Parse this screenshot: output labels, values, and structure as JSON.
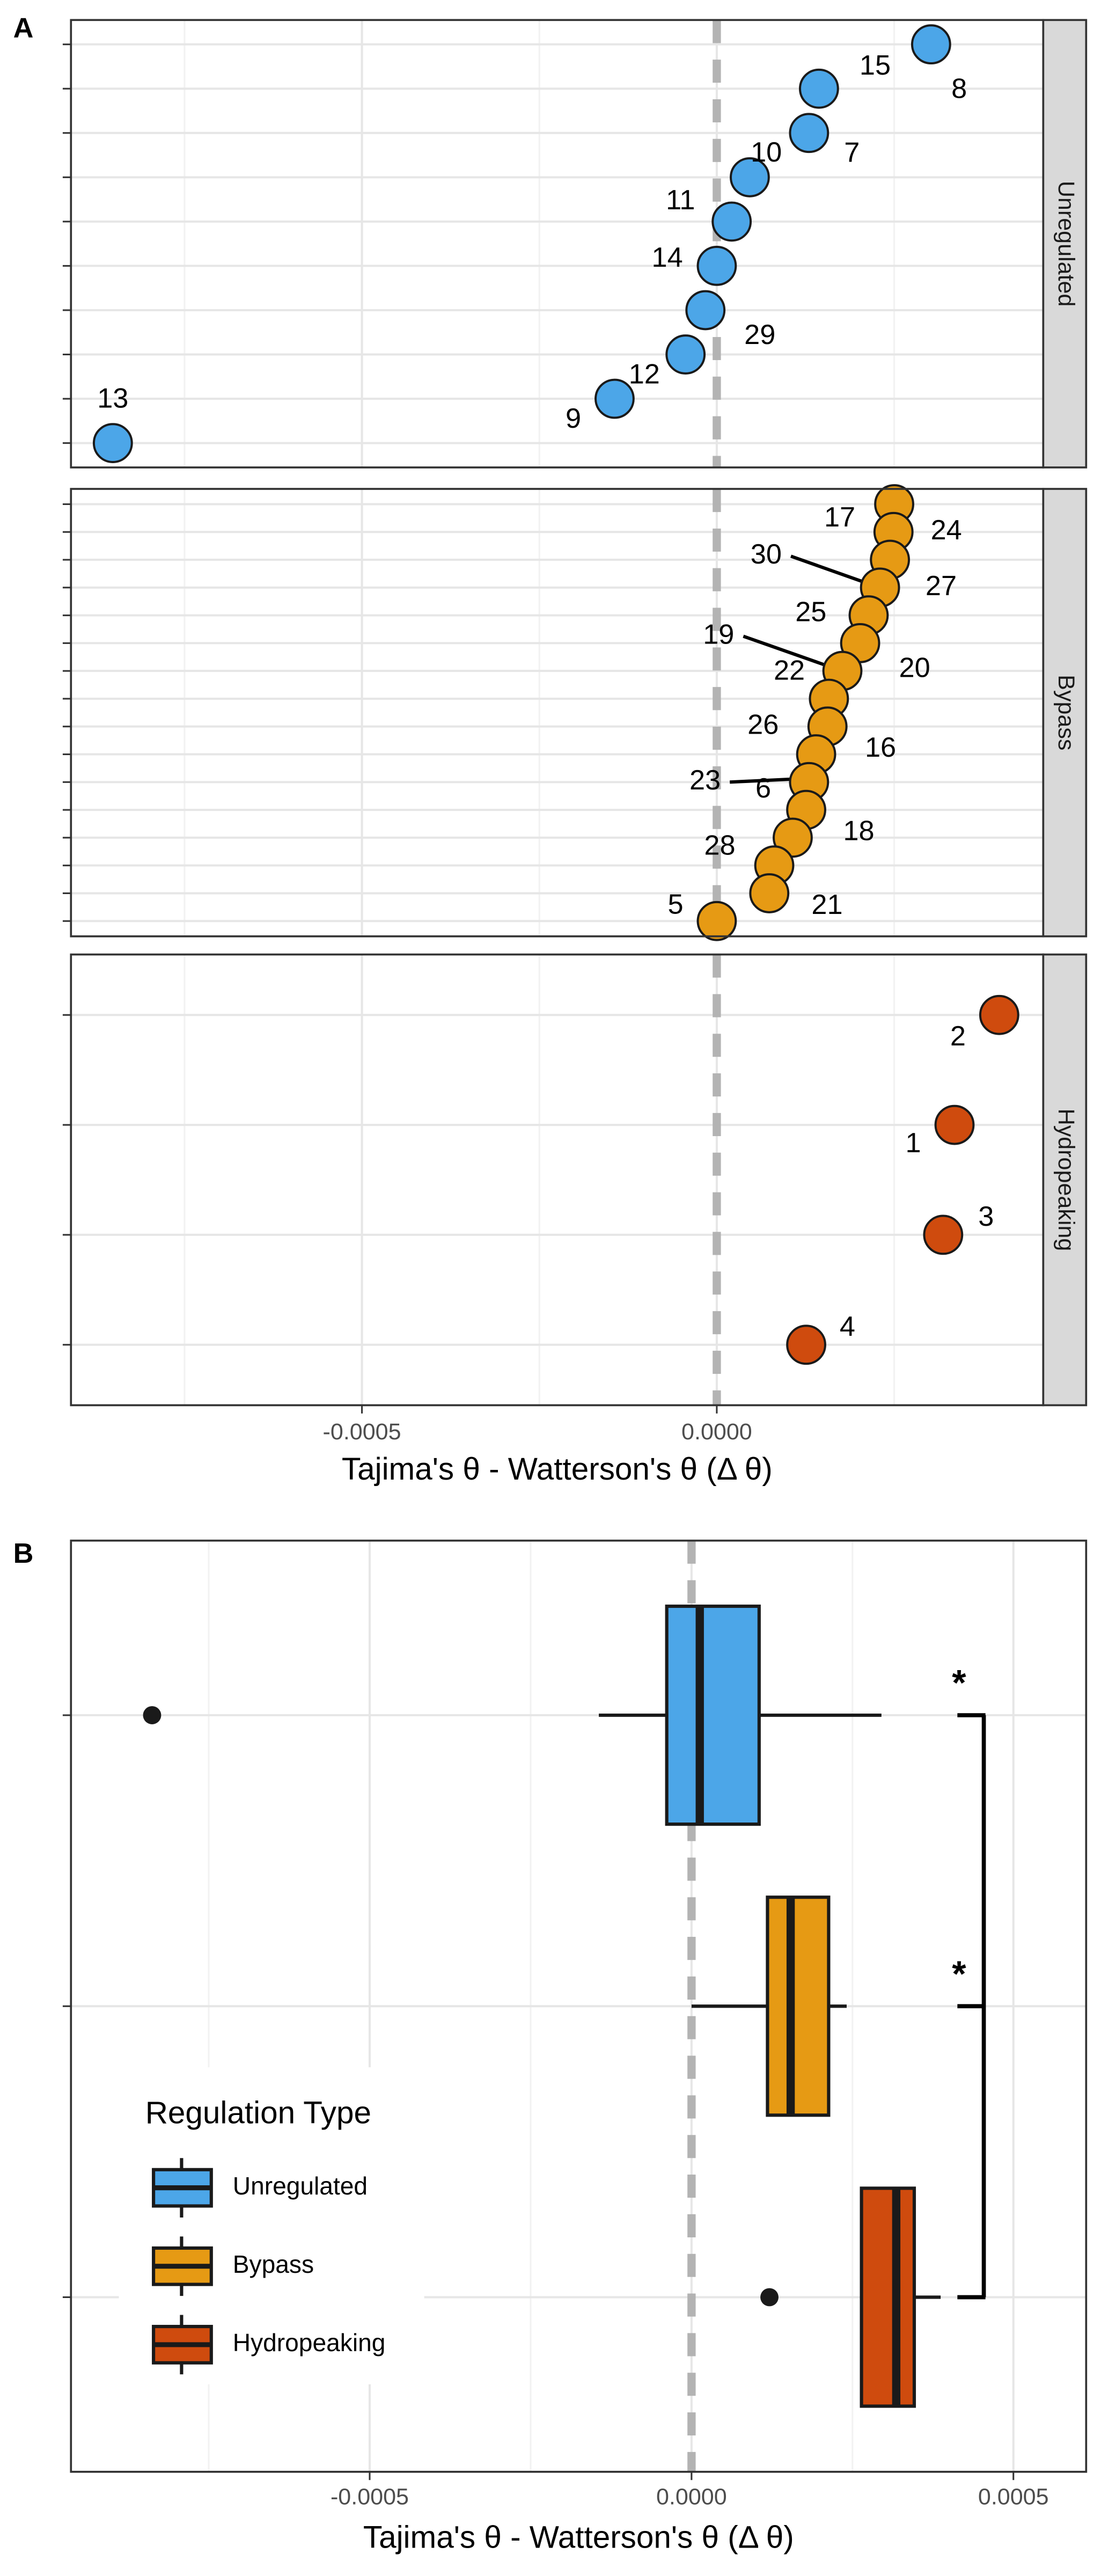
{
  "chart_data": [
    {
      "type": "dot",
      "panel_label": "A",
      "xlabel": "Tajima's θ - Watterson's θ (Δ θ)",
      "xlim": [
        -0.00091,
        0.00046
      ],
      "xticks": [
        -0.0005,
        {
          "value": 0,
          "label": "0.0000"
        }
      ],
      "minor_xticks": [
        -0.00075,
        -0.00025,
        0.00025
      ],
      "reference_x": 0,
      "grid": true,
      "facets": [
        {
          "name": "Unregulated",
          "color": "#4ca6e8",
          "categories": [
            "8",
            "15",
            "7",
            "10",
            "11",
            "14",
            "29",
            "12",
            "9",
            "13"
          ],
          "values": [
            0.000302,
            0.000144,
            0.00013,
            4.65e-05,
            2.1e-05,
            0.0,
            -1.6e-05,
            -4.4e-05,
            -0.000144,
            -0.000851
          ]
        },
        {
          "name": "Bypass",
          "color": "#e69a14",
          "categories": [
            "17",
            "24",
            "27",
            "30",
            "25",
            "20",
            "19",
            "22",
            "26",
            "16",
            "23",
            "6",
            "18",
            "28",
            "21",
            "5"
          ],
          "values": [
            0.00025,
            0.000249,
            0.000244,
            0.00023,
            0.000214,
            0.000202,
            0.000177,
            0.000158,
            0.000156,
            0.00014,
            0.00013,
            0.000126,
            0.000107,
            8.1e-05,
            7.4e-05,
            0.0
          ]
        },
        {
          "name": "Hydropeaking",
          "color": "#cf4b0e",
          "categories": [
            "2",
            "1",
            "3",
            "4"
          ],
          "values": [
            0.000398,
            0.000335,
            0.000319,
            0.000126
          ]
        }
      ]
    },
    {
      "type": "box",
      "panel_label": "B",
      "xlabel": "Tajima's θ - Watterson's θ (Δ θ)",
      "xlim": [
        -0.000964,
        0.000613
      ],
      "xticks": [
        -0.0005,
        {
          "value": 0,
          "label": "0.0000"
        },
        0.0005
      ],
      "minor_xticks": [
        -0.00075,
        -0.00025,
        0.00025
      ],
      "reference_x": 0,
      "grid": true,
      "legend_title": "Regulation Type",
      "series": [
        {
          "name": "Unregulated",
          "color": "#4ca6e8",
          "whisker_low": -0.000144,
          "q1": -3.85e-05,
          "median": 1.28e-05,
          "q3": 0.000105,
          "whisker_high": 0.000295,
          "outliers": [
            -0.000838
          ]
        },
        {
          "name": "Bypass",
          "color": "#e69a14",
          "whisker_low": 0.0,
          "q1": 0.000118,
          "median": 0.000154,
          "q3": 0.000213,
          "whisker_high": 0.000241,
          "outliers": []
        },
        {
          "name": "Hydropeaking",
          "color": "#cf4b0e",
          "whisker_low": 0.000264,
          "q1": 0.000264,
          "median": 0.000318,
          "q3": 0.000346,
          "whisker_high": 0.000387,
          "outliers": [
            0.000121
          ]
        }
      ],
      "annotations": [
        "*",
        "*"
      ]
    }
  ]
}
